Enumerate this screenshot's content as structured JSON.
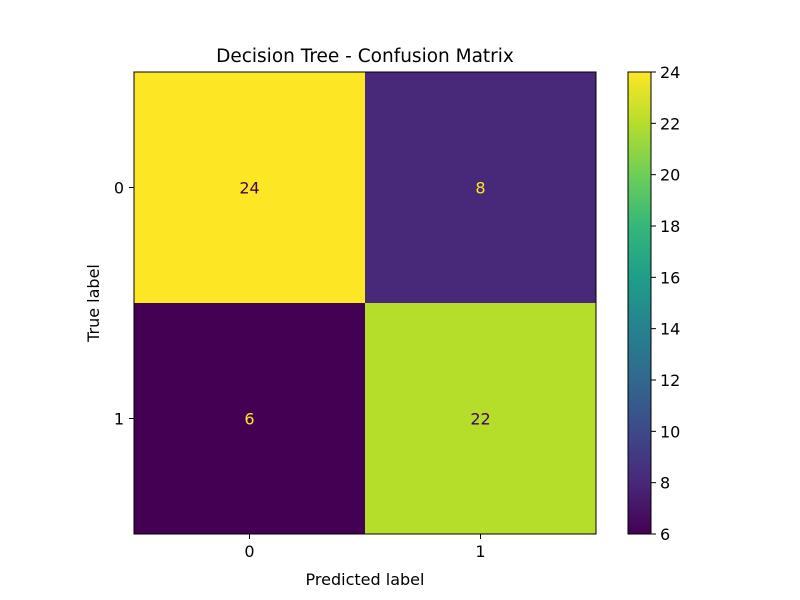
{
  "chart_data": {
    "type": "heatmap",
    "title": "Decision Tree - Confusion Matrix",
    "xlabel": "Predicted label",
    "ylabel": "True label",
    "x_categories": [
      "0",
      "1"
    ],
    "y_categories": [
      "0",
      "1"
    ],
    "matrix": [
      [
        24,
        8
      ],
      [
        6,
        22
      ]
    ],
    "colormap": "viridis",
    "colorbar": {
      "range": [
        6,
        24
      ],
      "ticks": [
        6,
        8,
        10,
        12,
        14,
        16,
        18,
        20,
        22,
        24
      ]
    },
    "cell_text_colors": {
      "on_dark": "#fde725",
      "on_light": "#440154"
    },
    "grid": false
  }
}
